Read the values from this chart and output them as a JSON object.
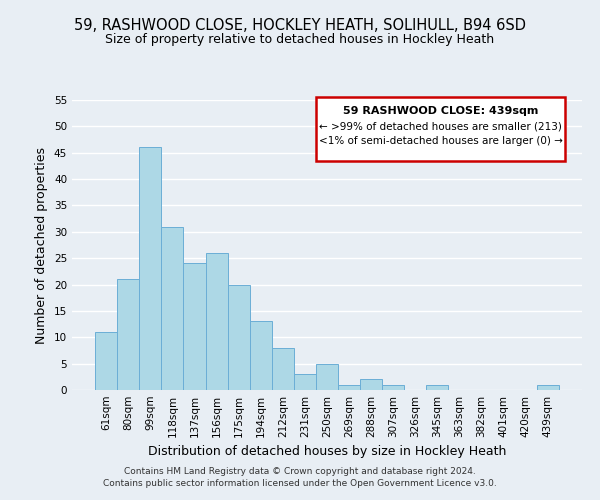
{
  "title": "59, RASHWOOD CLOSE, HOCKLEY HEATH, SOLIHULL, B94 6SD",
  "subtitle": "Size of property relative to detached houses in Hockley Heath",
  "xlabel": "Distribution of detached houses by size in Hockley Heath",
  "ylabel": "Number of detached properties",
  "bar_color": "#add8e6",
  "bar_edge_color": "#6baed6",
  "categories": [
    "61sqm",
    "80sqm",
    "99sqm",
    "118sqm",
    "137sqm",
    "156sqm",
    "175sqm",
    "194sqm",
    "212sqm",
    "231sqm",
    "250sqm",
    "269sqm",
    "288sqm",
    "307sqm",
    "326sqm",
    "345sqm",
    "363sqm",
    "382sqm",
    "401sqm",
    "420sqm",
    "439sqm"
  ],
  "values": [
    11,
    21,
    46,
    31,
    24,
    26,
    20,
    13,
    8,
    3,
    5,
    1,
    2,
    1,
    0,
    1,
    0,
    0,
    0,
    0,
    1
  ],
  "ylim": [
    0,
    55
  ],
  "yticks": [
    0,
    5,
    10,
    15,
    20,
    25,
    30,
    35,
    40,
    45,
    50,
    55
  ],
  "box_text_line1": "59 RASHWOOD CLOSE: 439sqm",
  "box_text_line2": "← >99% of detached houses are smaller (213)",
  "box_text_line3": "<1% of semi-detached houses are larger (0) →",
  "box_edge_color": "#cc0000",
  "box_facecolor": "#ffffff",
  "footer_line1": "Contains HM Land Registry data © Crown copyright and database right 2024.",
  "footer_line2": "Contains public sector information licensed under the Open Government Licence v3.0.",
  "background_color": "#e8eef4",
  "grid_color": "#ffffff",
  "title_fontsize": 10.5,
  "subtitle_fontsize": 9,
  "axis_label_fontsize": 9,
  "tick_fontsize": 7.5
}
